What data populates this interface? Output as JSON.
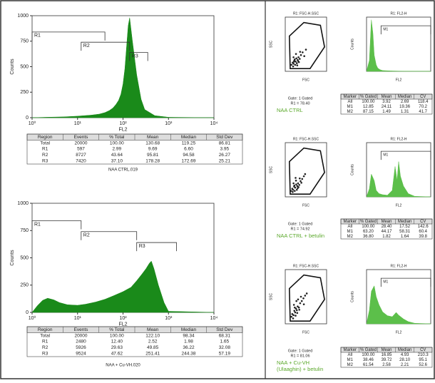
{
  "chart_data": [
    {
      "type": "histogram-area",
      "x_label": "FL2",
      "y_label": "Counts",
      "log_x": true,
      "color": "#1a8a1a",
      "xlim": [
        1,
        10000
      ],
      "xticks": [
        {
          "value": 1,
          "label": "10⁰"
        },
        {
          "value": 10,
          "label": "10¹"
        },
        {
          "value": 100,
          "label": "10²"
        },
        {
          "value": 1000,
          "label": "10³"
        },
        {
          "value": 10000,
          "label": "10⁴"
        }
      ],
      "ylim": [
        0,
        1000
      ],
      "yticks": [
        0,
        250,
        500,
        750,
        1000
      ],
      "x": [
        1,
        2,
        5,
        10,
        20,
        30,
        40,
        50,
        60,
        70,
        80,
        90,
        100,
        110,
        120,
        130,
        140,
        160,
        200,
        250,
        300,
        500,
        1000,
        10000
      ],
      "values": [
        0,
        4,
        8,
        15,
        25,
        35,
        50,
        70,
        95,
        130,
        170,
        230,
        330,
        480,
        700,
        900,
        980,
        760,
        420,
        180,
        80,
        20,
        4,
        0
      ],
      "regions": [
        {
          "label": "R1",
          "range": [
            1,
            40
          ]
        },
        {
          "label": "R2",
          "range": [
            12,
            140
          ]
        },
        {
          "label": "R3",
          "range": [
            140,
            350
          ]
        }
      ],
      "table": {
        "columns": [
          "Region",
          "Events",
          "% Total",
          "Mean",
          "Median",
          "Std Dev"
        ],
        "rows": [
          [
            "Total",
            "20000",
            "100.00",
            "130.68",
            "119.25",
            "86.81"
          ],
          [
            "R1",
            "597",
            "2.99",
            "9.69",
            "6.60",
            "3.95"
          ],
          [
            "R2",
            "8727",
            "43.64",
            "95.81",
            "94.58",
            "26.27"
          ],
          [
            "R3",
            "7420",
            "37.10",
            "178.28",
            "172.69",
            "25.21"
          ]
        ]
      },
      "caption": "NAA CTRL.019"
    },
    {
      "type": "histogram-area",
      "x_label": "FL2",
      "y_label": "Counts",
      "log_x": true,
      "color": "#1a8a1a",
      "xlim": [
        1,
        10000
      ],
      "xticks": [
        {
          "value": 1,
          "label": "10⁰"
        },
        {
          "value": 10,
          "label": "10¹"
        },
        {
          "value": 100,
          "label": "10²"
        },
        {
          "value": 1000,
          "label": "10³"
        },
        {
          "value": 10000,
          "label": "10⁴"
        }
      ],
      "ylim": [
        0,
        1000
      ],
      "yticks": [
        0,
        250,
        500,
        750,
        1000
      ],
      "x": [
        1,
        1.3,
        1.7,
        2.2,
        3,
        4,
        6,
        10,
        15,
        25,
        40,
        60,
        100,
        150,
        200,
        260,
        320,
        380,
        420,
        480,
        600,
        800,
        1000,
        10000
      ],
      "values": [
        0,
        60,
        110,
        130,
        115,
        90,
        70,
        65,
        75,
        95,
        120,
        150,
        190,
        230,
        290,
        350,
        400,
        450,
        470,
        400,
        250,
        90,
        10,
        0
      ],
      "regions": [
        {
          "label": "R1",
          "range": [
            1,
            12
          ]
        },
        {
          "label": "R2",
          "range": [
            12,
            200
          ]
        },
        {
          "label": "R3",
          "range": [
            200,
            1500
          ]
        }
      ],
      "table": {
        "columns": [
          "Region",
          "Events",
          "% Total",
          "Mean",
          "Median",
          "Std Dev"
        ],
        "rows": [
          [
            "Total",
            "20000",
            "100.00",
            "122.10",
            "98.34",
            "68.31"
          ],
          [
            "R1",
            "2480",
            "12.40",
            "2.52",
            "1.98",
            "1.65"
          ],
          [
            "R2",
            "5926",
            "29.63",
            "49.85",
            "36.22",
            "32.08"
          ],
          [
            "R3",
            "9524",
            "47.62",
            "251.41",
            "244.38",
            "57.19"
          ]
        ]
      },
      "caption": "NAA + Cu-VH.020"
    },
    {
      "type": "scatter",
      "title": "R1: FSC-H.SSC",
      "x_label": "FSC",
      "y_label": "SSC",
      "color": "#222222",
      "xlim": [
        0,
        1000
      ],
      "ylim": [
        0,
        1000
      ],
      "x": [
        150,
        180,
        200,
        220,
        250,
        270,
        300,
        320,
        350,
        380,
        200,
        240,
        280,
        310,
        260,
        420,
        460,
        500,
        190,
        230,
        330,
        290,
        210,
        360
      ],
      "y": [
        120,
        160,
        140,
        200,
        180,
        240,
        210,
        260,
        230,
        300,
        260,
        120,
        150,
        190,
        320,
        350,
        280,
        400,
        90,
        220,
        170,
        110,
        180,
        360
      ],
      "caption": [
        "Gate: 1 Gated",
        "R1 = 78.40"
      ],
      "label": "NAA CTRL"
    },
    {
      "type": "scatter",
      "title": "R1: FSC-H.SSC",
      "x_label": "FSC",
      "y_label": "SSC",
      "color": "#222222",
      "xlim": [
        0,
        1000
      ],
      "ylim": [
        0,
        1000
      ],
      "x": [
        140,
        170,
        190,
        215,
        240,
        265,
        290,
        310,
        340,
        370,
        410,
        450,
        200,
        230,
        260,
        300,
        180,
        350,
        280,
        220,
        480,
        320,
        250,
        390
      ],
      "y": [
        110,
        150,
        130,
        190,
        170,
        230,
        200,
        250,
        220,
        290,
        330,
        380,
        250,
        110,
        300,
        160,
        90,
        340,
        130,
        210,
        420,
        180,
        350,
        260
      ],
      "caption": [
        "Gate: 1 Gated",
        "R1 = 74.92"
      ],
      "label": "NAA CTRL + betulin"
    },
    {
      "type": "scatter",
      "title": "R1: FSC-H.SSC",
      "x_label": "FSC",
      "y_label": "SSC",
      "color": "#222222",
      "xlim": [
        0,
        1000
      ],
      "ylim": [
        0,
        1000
      ],
      "x": [
        150,
        170,
        200,
        220,
        240,
        260,
        280,
        300,
        330,
        360,
        400,
        440,
        480,
        520,
        210,
        250,
        290,
        190,
        230,
        340,
        380,
        270,
        310,
        450
      ],
      "y": [
        130,
        180,
        160,
        240,
        210,
        280,
        250,
        320,
        300,
        380,
        420,
        470,
        520,
        560,
        350,
        150,
        200,
        100,
        300,
        260,
        500,
        420,
        450,
        360
      ],
      "caption": [
        "Gate: 1 Gated",
        "R1 = 81.06"
      ],
      "label": [
        "NAA + Cu-VH",
        "(Ulaaghin) + betulin"
      ]
    },
    {
      "type": "histogram-area",
      "title": "R1: FL2-H",
      "x_label": "FL2",
      "y_label": "Counts",
      "log_x": true,
      "color": "#5cbf4a",
      "xlim": [
        1,
        10000
      ],
      "ylim": [
        0,
        1000
      ],
      "x": [
        1,
        1.5,
        2,
        2.5,
        3,
        4,
        5,
        7,
        10,
        30,
        100,
        1000,
        10000
      ],
      "values": [
        0,
        200,
        950,
        700,
        300,
        120,
        60,
        30,
        15,
        8,
        4,
        2,
        0
      ],
      "regions": [
        {
          "label": "M1",
          "range": [
            8,
            10000
          ]
        }
      ],
      "table": {
        "columns": [
          "Marker",
          "% Gated",
          "Mean",
          "Median",
          "CV"
        ],
        "rows": [
          [
            "All",
            "100.00",
            "3.92",
            "2.69",
            "118.4"
          ],
          [
            "M1",
            "12.85",
            "24.11",
            "19.36",
            "70.2"
          ],
          [
            "M2",
            "87.15",
            "1.49",
            "1.31",
            "41.7"
          ]
        ]
      }
    },
    {
      "type": "histogram-area",
      "title": "R1: FL2-H",
      "x_label": "FL2",
      "y_label": "Counts",
      "log_x": true,
      "color": "#5cbf4a",
      "xlim": [
        1,
        10000
      ],
      "ylim": [
        0,
        1000
      ],
      "x": [
        1,
        1.5,
        2,
        3,
        4,
        6,
        10,
        20,
        40,
        60,
        80,
        100,
        130,
        200,
        400,
        1000,
        10000
      ],
      "values": [
        0,
        150,
        420,
        300,
        120,
        60,
        40,
        30,
        120,
        560,
        300,
        650,
        380,
        200,
        60,
        10,
        0
      ],
      "regions": [
        {
          "label": "M1",
          "range": [
            8,
            10000
          ]
        }
      ],
      "table": {
        "columns": [
          "Marker",
          "% Gated",
          "Mean",
          "Median",
          "CV"
        ],
        "rows": [
          [
            "All",
            "100.00",
            "28.40",
            "17.52",
            "142.6"
          ],
          [
            "M1",
            "63.20",
            "44.17",
            "58.31",
            "60.4"
          ],
          [
            "M2",
            "36.80",
            "1.82",
            "1.64",
            "39.8"
          ]
        ]
      }
    },
    {
      "type": "histogram-area",
      "title": "R1: FL2-H",
      "x_label": "FL2",
      "y_label": "Counts",
      "log_x": true,
      "color": "#5cbf4a",
      "xlim": [
        1,
        10000
      ],
      "ylim": [
        0,
        1000
      ],
      "x": [
        1,
        1.5,
        2,
        3,
        4,
        6,
        10,
        20,
        40,
        70,
        100,
        200,
        400,
        1000,
        10000
      ],
      "values": [
        0,
        250,
        600,
        700,
        500,
        350,
        220,
        150,
        130,
        210,
        160,
        90,
        40,
        10,
        0
      ],
      "regions": [
        {
          "label": "M1",
          "range": [
            8,
            10000
          ]
        }
      ],
      "table": {
        "columns": [
          "Marker",
          "% Gated",
          "Mean",
          "Median",
          "CV"
        ],
        "rows": [
          [
            "All",
            "100.00",
            "16.85",
            "4.93",
            "210.3"
          ],
          [
            "M1",
            "38.46",
            "39.72",
            "28.10",
            "95.1"
          ],
          [
            "M2",
            "61.54",
            "2.58",
            "2.21",
            "52.6"
          ]
        ]
      }
    }
  ]
}
